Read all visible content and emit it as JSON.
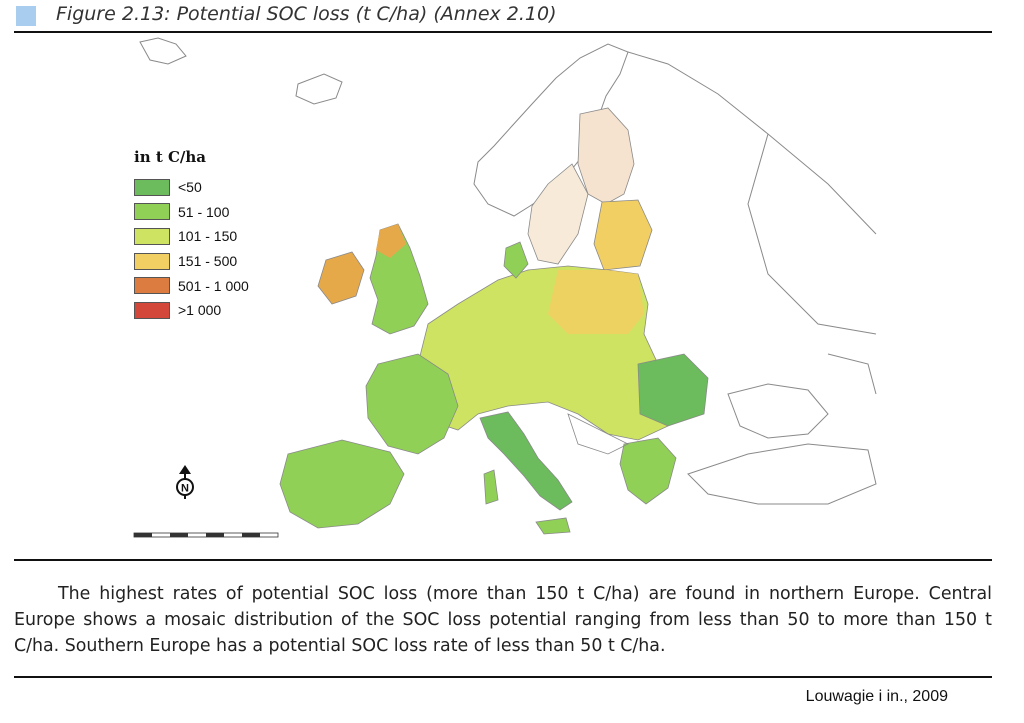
{
  "figure": {
    "title": "Figure 2.13: Potential SOC loss (t C/ha) (Annex 2.10)"
  },
  "legend": {
    "title": "in t C/ha",
    "items": [
      {
        "label": "<50",
        "color": "#6cbb5c"
      },
      {
        "label": "51 - 100",
        "color": "#90d056"
      },
      {
        "label": "101 - 150",
        "color": "#cfe362"
      },
      {
        "label": "151 - 500",
        "color": "#f2cf63"
      },
      {
        "label": "501 - 1 000",
        "color": "#dc7c40"
      },
      {
        "label": ">1 000",
        "color": "#d2473a"
      }
    ]
  },
  "map": {
    "north_arrow_letter": "N",
    "colors": {
      "outline": "#8a8a8a",
      "low": "#6cbb5c",
      "moderate": "#90d056",
      "medium": "#cfe362",
      "high": "#f2cf63",
      "pale_high": "#f5e3d0"
    }
  },
  "body": {
    "text": "The highest rates of potential SOC loss (more than 150 t C/ha) are found in northern Europe. Central Europe shows a mosaic distribution of the SOC loss potential ranging from less than 50 to more than 150 t C/ha. Southern Europe has a potential SOC loss rate of less than 50 t C/ha."
  },
  "source": {
    "text": "Louwagie i in., 2009"
  }
}
